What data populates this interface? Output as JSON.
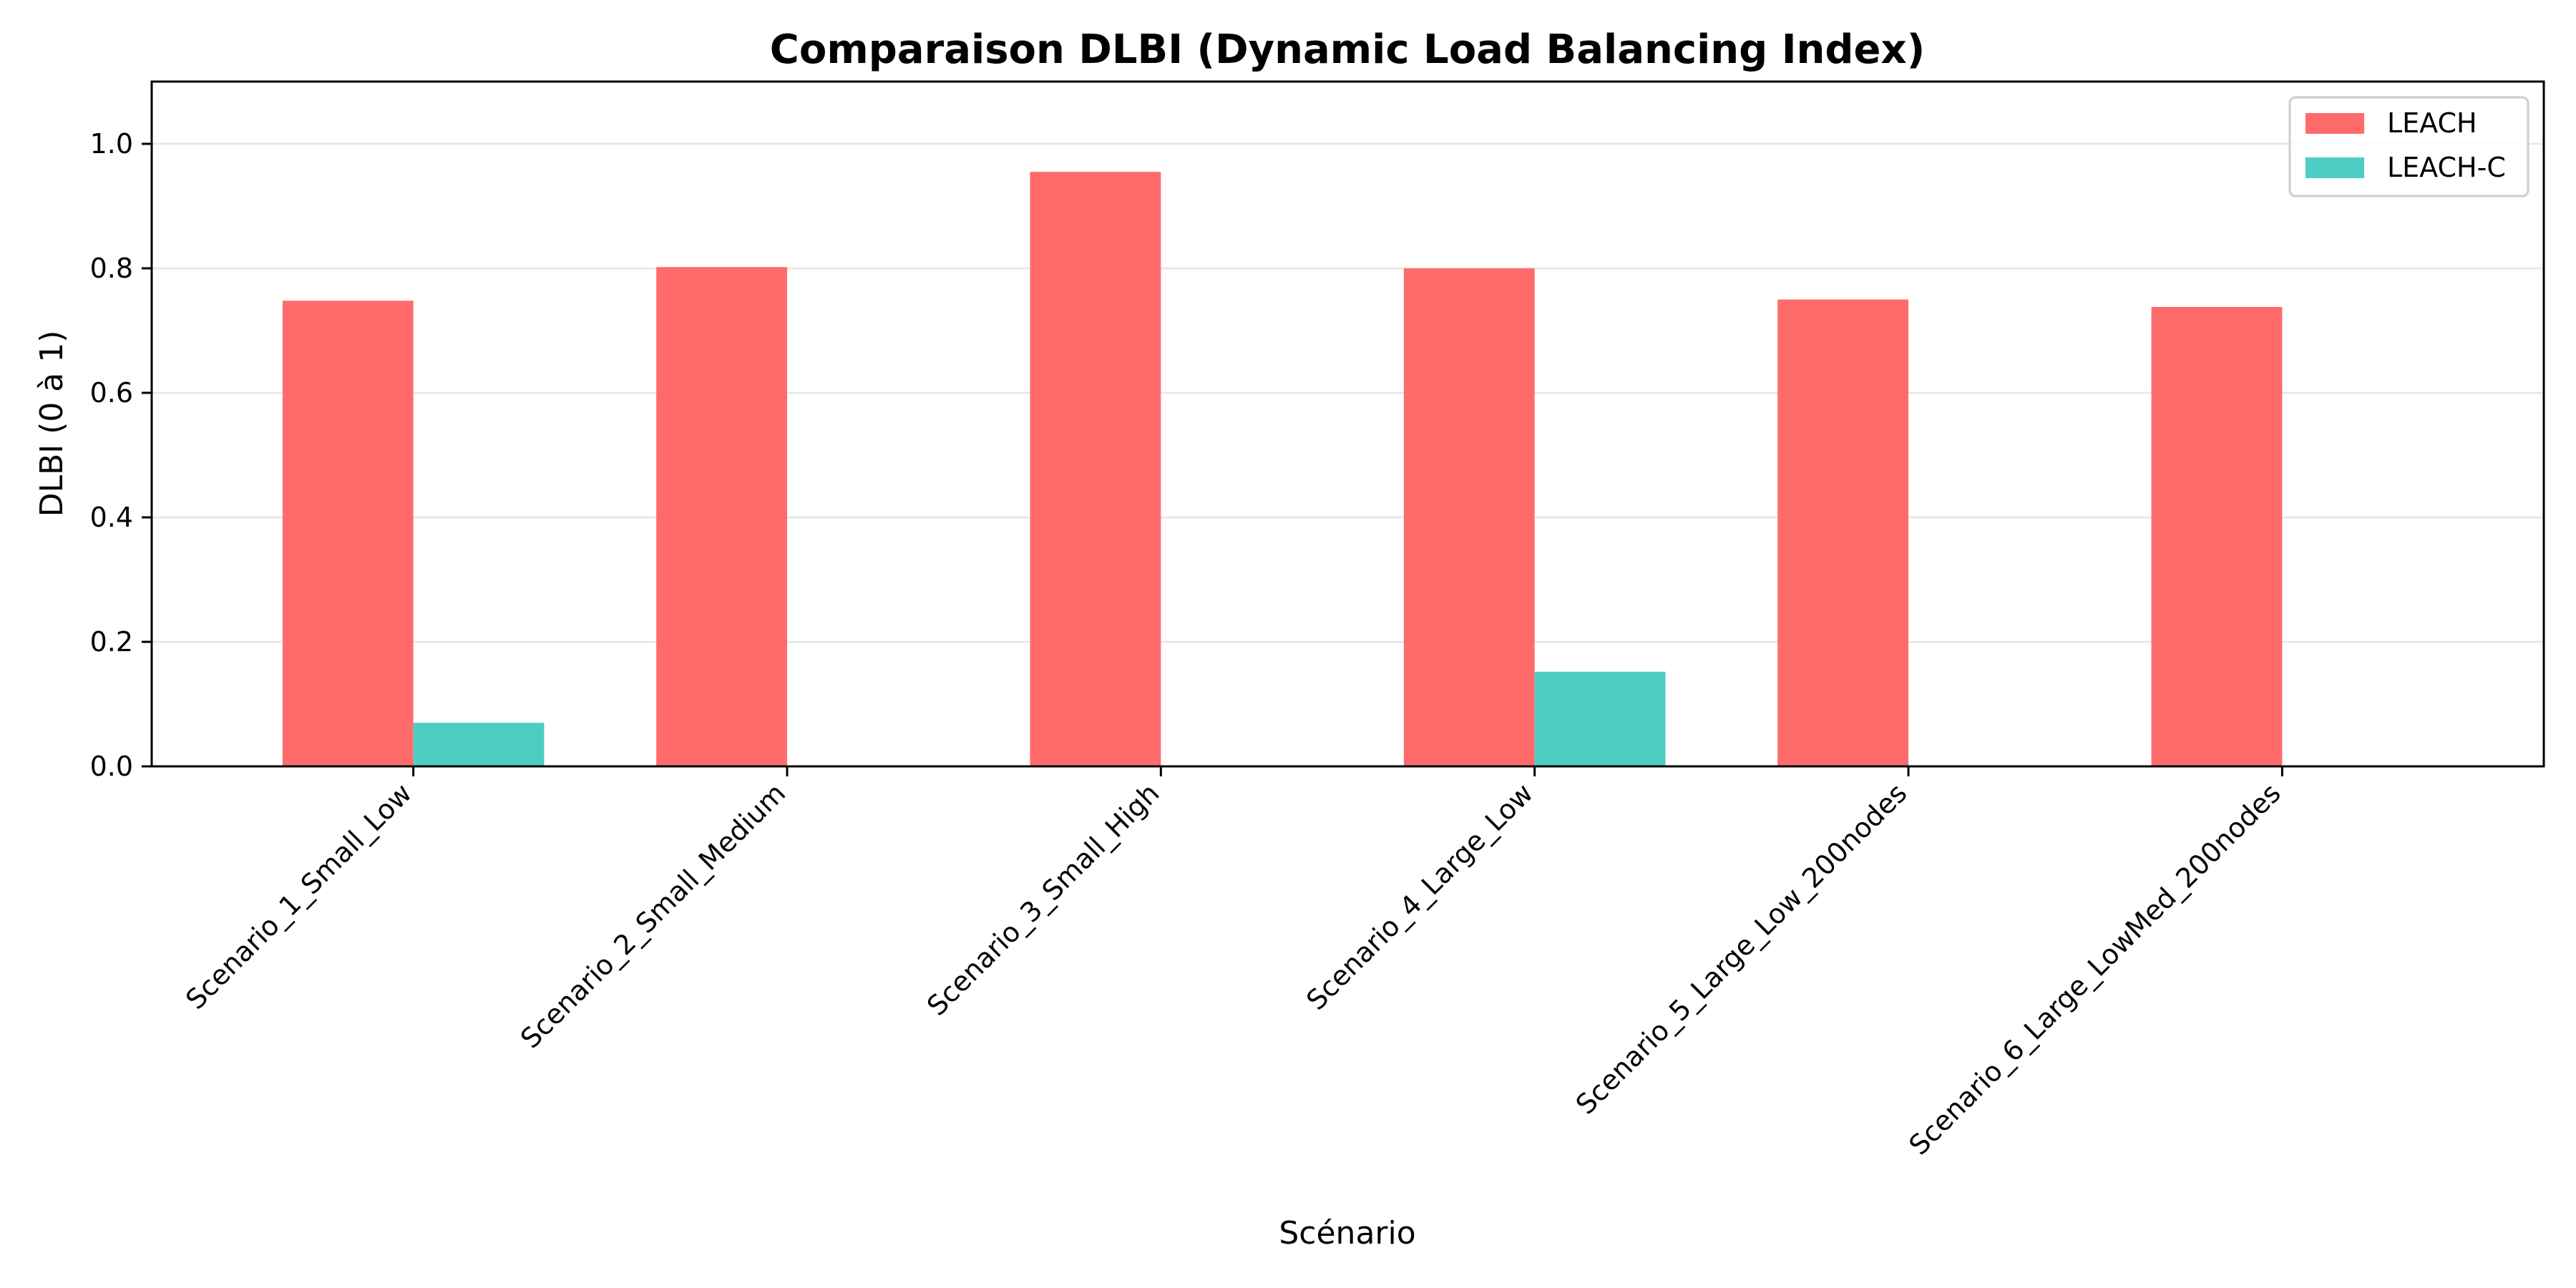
{
  "chart_data": {
    "type": "bar",
    "title": "Comparaison DLBI (Dynamic Load Balancing Index)",
    "xlabel": "Scénario",
    "ylabel": "DLBI (0 à 1)",
    "ylim": [
      0,
      1.1
    ],
    "yticks": [
      0.0,
      0.2,
      0.4,
      0.6,
      0.8,
      1.0
    ],
    "ytick_labels": [
      "0.0",
      "0.2",
      "0.4",
      "0.6",
      "0.8",
      "1.0"
    ],
    "grid": "y",
    "legend_position": "top-right",
    "categories": [
      "Scenario_1_Small_Low",
      "Scenario_2_Small_Medium",
      "Scenario_3_Small_High",
      "Scenario_4_Large_Low",
      "Scenario_5_Large_Low_200nodes",
      "Scenario_6_Large_LowMed_200nodes"
    ],
    "series": [
      {
        "name": "LEACH",
        "color": "#ff6b6b",
        "values": [
          0.748,
          0.802,
          0.955,
          0.8,
          0.75,
          0.738
        ]
      },
      {
        "name": "LEACH-C",
        "color": "#4ecdc4",
        "values": [
          0.07,
          0.0,
          0.0,
          0.152,
          0.0,
          0.0
        ]
      }
    ]
  }
}
